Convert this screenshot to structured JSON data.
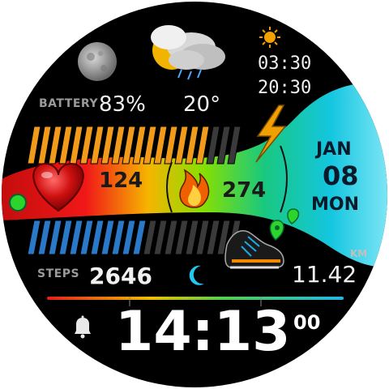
{
  "battery": {
    "label": "BATTERY",
    "percent_text": "83%",
    "level": 0.83
  },
  "weather": {
    "temperature": "20°",
    "icon": "cloud-sun-rain-icon",
    "moon_icon": "moon-icon"
  },
  "sun": {
    "icon": "sun-icon",
    "sunrise": "03:30",
    "sunset": "20:30"
  },
  "heart": {
    "icon": "heart-icon",
    "value": "124"
  },
  "calories": {
    "icon": "flame-icon",
    "value": "274"
  },
  "date": {
    "month": "JAN",
    "day": "08",
    "weekday": "MON"
  },
  "steps": {
    "label": "STEPS",
    "value": "2646",
    "progress": 0.55
  },
  "distance": {
    "unit": "KM",
    "value": "11.42",
    "icon": "shoe-icon"
  },
  "sleep": {
    "icon": "crescent-moon-icon"
  },
  "time": {
    "hours_minutes": "14:13",
    "seconds": "00",
    "alarm_icon": "bell-icon"
  },
  "colors": {
    "accent_red": "#e81c1c",
    "accent_cyan": "#1fd0e6",
    "battery_orange": "#f29b1a",
    "steps_blue": "#2a78c8"
  }
}
